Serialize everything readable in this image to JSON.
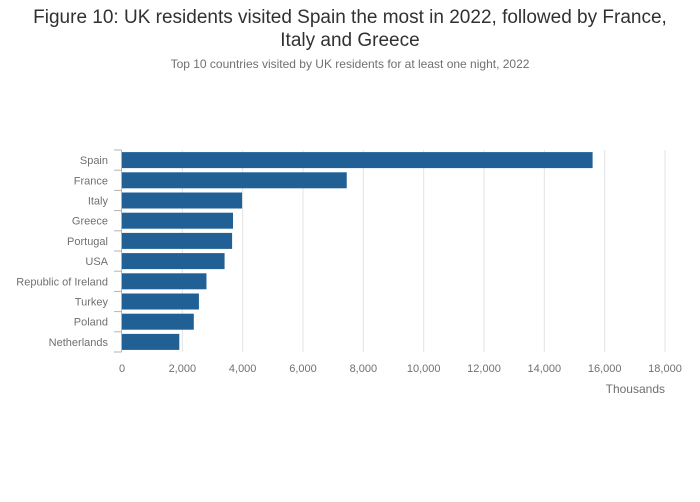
{
  "title_line1": "Figure 10: UK residents visited Spain the most in 2022, followed by France,",
  "title_line2": "Italy and Greece",
  "subtitle": "Top 10 countries visited by UK residents for at least one night, 2022",
  "chart_data": {
    "type": "bar",
    "orientation": "horizontal",
    "categories": [
      "Spain",
      "France",
      "Italy",
      "Greece",
      "Portugal",
      "USA",
      "Republic of Ireland",
      "Turkey",
      "Poland",
      "Netherlands"
    ],
    "values": [
      15600,
      7450,
      3980,
      3680,
      3650,
      3400,
      2800,
      2550,
      2380,
      1900
    ],
    "xlabel": "Thousands",
    "ylabel": "",
    "xlim": [
      0,
      18000
    ],
    "xticks": [
      0,
      2000,
      4000,
      6000,
      8000,
      10000,
      12000,
      14000,
      16000,
      18000
    ],
    "xtick_labels": [
      "0",
      "2,000",
      "4,000",
      "6,000",
      "8,000",
      "10,000",
      "12,000",
      "14,000",
      "16,000",
      "18,000"
    ],
    "bar_color": "#206095",
    "grid": true
  }
}
